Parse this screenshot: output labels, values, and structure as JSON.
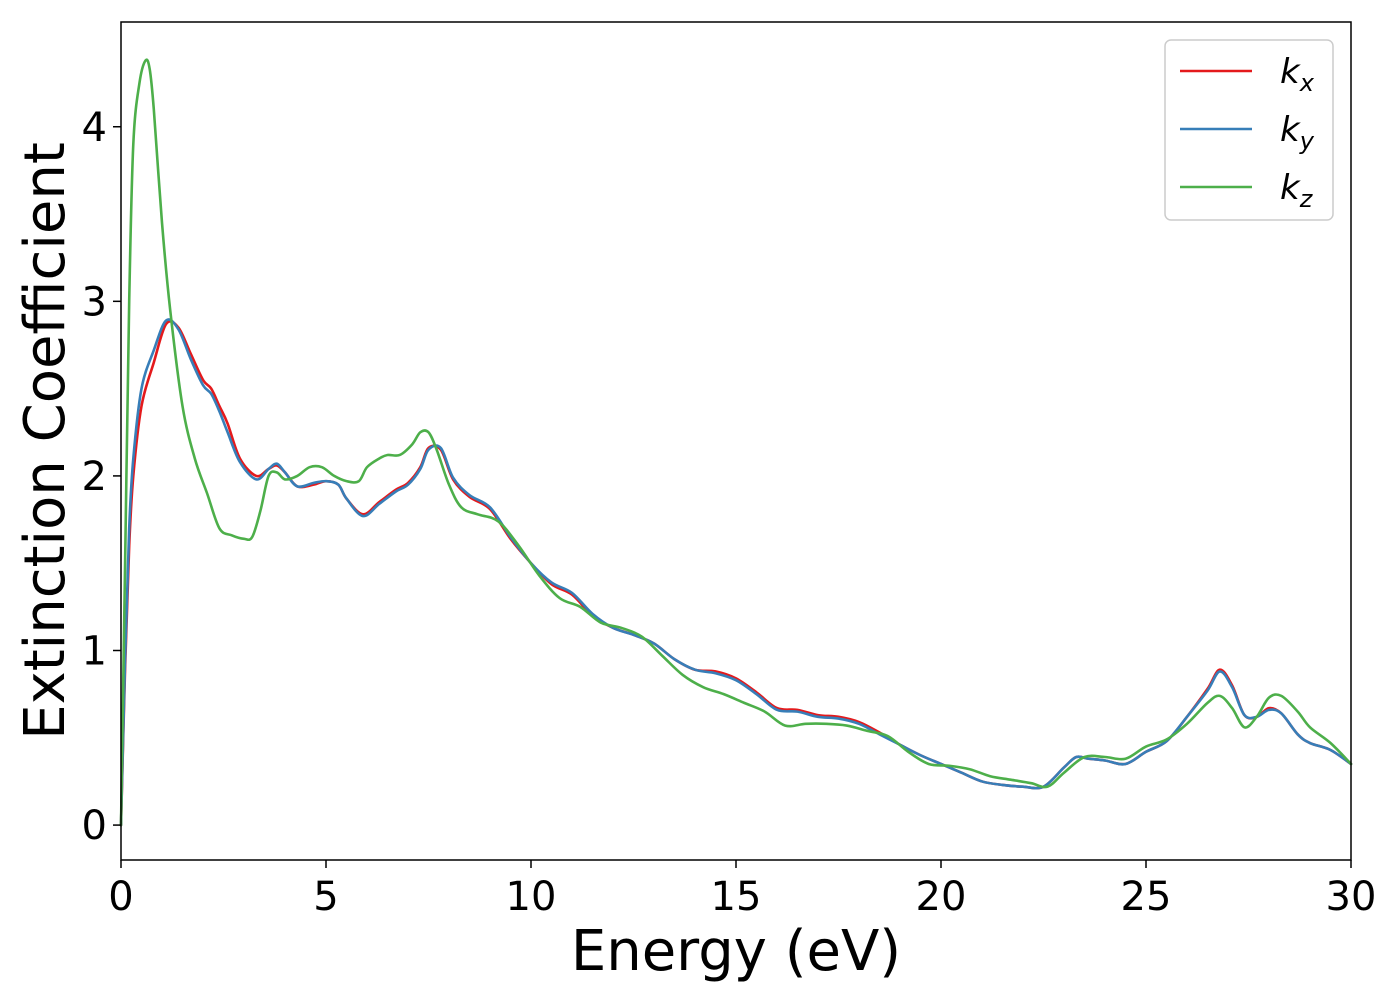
{
  "chart_data": {
    "type": "line",
    "xlabel": "Energy (eV)",
    "ylabel": "Extinction Coefficient",
    "xlim": [
      0,
      30
    ],
    "ylim": [
      -0.2,
      4.6
    ],
    "xticks": [
      0,
      5,
      10,
      15,
      20,
      25,
      30
    ],
    "xtick_labels": [
      "0",
      "5",
      "10",
      "15",
      "20",
      "25",
      "30"
    ],
    "yticks": [
      0,
      1,
      2,
      3,
      4
    ],
    "ytick_labels": [
      "0",
      "1",
      "2",
      "3",
      "4"
    ],
    "grid": false,
    "legend_position": "top-right",
    "series": [
      {
        "name": "k_x",
        "label_main": "k",
        "label_sub": "x",
        "color": "#e41a1c",
        "x": [
          0,
          0.1,
          0.2,
          0.3,
          0.5,
          0.8,
          1.1,
          1.4,
          1.7,
          2.0,
          2.2,
          2.4,
          2.6,
          2.9,
          3.3,
          3.6,
          3.8,
          4.0,
          4.3,
          4.7,
          5.0,
          5.3,
          5.5,
          5.9,
          6.3,
          6.7,
          7.0,
          7.3,
          7.5,
          7.8,
          8.1,
          8.5,
          9.0,
          9.5,
          10.0,
          10.5,
          11.0,
          11.5,
          12.0,
          12.5,
          13.0,
          13.5,
          14.0,
          14.5,
          15.0,
          15.5,
          16.0,
          16.5,
          17.0,
          17.5,
          18.0,
          18.5,
          19.0,
          19.5,
          20.0,
          20.5,
          21.0,
          21.5,
          22.0,
          22.5,
          23.0,
          23.3,
          23.6,
          24.0,
          24.5,
          25.0,
          25.5,
          26.0,
          26.5,
          26.8,
          27.1,
          27.4,
          27.7,
          28.0,
          28.3,
          28.7,
          29.0,
          29.5,
          30.0
        ],
        "y": [
          0.0,
          0.9,
          1.6,
          2.0,
          2.4,
          2.65,
          2.87,
          2.85,
          2.7,
          2.55,
          2.5,
          2.4,
          2.3,
          2.1,
          2.0,
          2.04,
          2.06,
          2.02,
          1.94,
          1.95,
          1.97,
          1.95,
          1.87,
          1.78,
          1.85,
          1.92,
          1.96,
          2.05,
          2.16,
          2.15,
          1.98,
          1.88,
          1.81,
          1.64,
          1.5,
          1.38,
          1.32,
          1.2,
          1.13,
          1.09,
          1.04,
          0.95,
          0.89,
          0.88,
          0.84,
          0.76,
          0.67,
          0.66,
          0.63,
          0.62,
          0.59,
          0.53,
          0.46,
          0.4,
          0.35,
          0.3,
          0.25,
          0.23,
          0.22,
          0.22,
          0.33,
          0.39,
          0.38,
          0.37,
          0.35,
          0.42,
          0.48,
          0.62,
          0.78,
          0.89,
          0.8,
          0.63,
          0.62,
          0.67,
          0.64,
          0.52,
          0.47,
          0.43,
          0.35
        ]
      },
      {
        "name": "k_y",
        "label_main": "k",
        "label_sub": "y",
        "color": "#377eb8",
        "x": [
          0,
          0.1,
          0.2,
          0.3,
          0.5,
          0.8,
          1.1,
          1.4,
          1.7,
          2.0,
          2.2,
          2.4,
          2.6,
          2.9,
          3.3,
          3.6,
          3.8,
          4.0,
          4.3,
          4.7,
          5.0,
          5.3,
          5.5,
          5.9,
          6.3,
          6.7,
          7.0,
          7.3,
          7.5,
          7.8,
          8.1,
          8.5,
          9.0,
          9.5,
          10.0,
          10.5,
          11.0,
          11.5,
          12.0,
          12.5,
          13.0,
          13.5,
          14.0,
          14.5,
          15.0,
          15.5,
          16.0,
          16.5,
          17.0,
          17.5,
          18.0,
          18.5,
          19.0,
          19.5,
          20.0,
          20.5,
          21.0,
          21.5,
          22.0,
          22.5,
          23.0,
          23.3,
          23.6,
          24.0,
          24.5,
          25.0,
          25.5,
          26.0,
          26.5,
          26.8,
          27.1,
          27.4,
          27.7,
          28.0,
          28.3,
          28.7,
          29.0,
          29.5,
          30.0
        ],
        "y": [
          0.0,
          0.95,
          1.7,
          2.1,
          2.5,
          2.72,
          2.89,
          2.84,
          2.67,
          2.52,
          2.47,
          2.37,
          2.25,
          2.08,
          1.98,
          2.04,
          2.07,
          2.02,
          1.94,
          1.96,
          1.97,
          1.95,
          1.87,
          1.77,
          1.84,
          1.91,
          1.95,
          2.04,
          2.15,
          2.16,
          1.99,
          1.89,
          1.82,
          1.65,
          1.5,
          1.39,
          1.33,
          1.21,
          1.13,
          1.09,
          1.04,
          0.95,
          0.89,
          0.87,
          0.83,
          0.75,
          0.66,
          0.65,
          0.62,
          0.61,
          0.58,
          0.52,
          0.46,
          0.4,
          0.35,
          0.3,
          0.25,
          0.23,
          0.22,
          0.22,
          0.33,
          0.39,
          0.38,
          0.37,
          0.35,
          0.42,
          0.48,
          0.62,
          0.77,
          0.88,
          0.79,
          0.63,
          0.62,
          0.66,
          0.64,
          0.52,
          0.47,
          0.43,
          0.35
        ]
      },
      {
        "name": "k_z",
        "label_main": "k",
        "label_sub": "z",
        "color": "#4daf4a",
        "x": [
          0,
          0.1,
          0.2,
          0.3,
          0.45,
          0.6,
          0.7,
          0.8,
          1.0,
          1.2,
          1.5,
          1.8,
          2.1,
          2.4,
          2.7,
          3.0,
          3.2,
          3.4,
          3.6,
          3.8,
          4.0,
          4.3,
          4.6,
          4.9,
          5.2,
          5.5,
          5.8,
          6.0,
          6.3,
          6.5,
          6.8,
          7.1,
          7.3,
          7.5,
          7.7,
          8.0,
          8.3,
          8.7,
          9.2,
          9.7,
          10.2,
          10.7,
          11.2,
          11.7,
          12.2,
          12.7,
          13.2,
          13.7,
          14.2,
          14.7,
          15.2,
          15.7,
          16.2,
          16.7,
          17.2,
          17.7,
          18.2,
          18.7,
          19.2,
          19.7,
          20.2,
          20.7,
          21.2,
          21.7,
          22.2,
          22.6,
          23.0,
          23.5,
          24.0,
          24.5,
          25.0,
          25.5,
          26.0,
          26.5,
          26.8,
          27.1,
          27.4,
          27.7,
          28.0,
          28.3,
          28.7,
          29.0,
          29.5,
          30.0
        ],
        "y": [
          0.0,
          1.5,
          3.0,
          3.9,
          4.25,
          4.38,
          4.33,
          4.1,
          3.45,
          2.95,
          2.4,
          2.1,
          1.9,
          1.7,
          1.66,
          1.64,
          1.65,
          1.8,
          2.0,
          2.02,
          1.98,
          2.0,
          2.05,
          2.05,
          2.0,
          1.97,
          1.97,
          2.05,
          2.1,
          2.12,
          2.12,
          2.18,
          2.25,
          2.25,
          2.15,
          1.95,
          1.82,
          1.78,
          1.74,
          1.6,
          1.43,
          1.3,
          1.25,
          1.16,
          1.13,
          1.08,
          0.97,
          0.86,
          0.79,
          0.75,
          0.7,
          0.65,
          0.57,
          0.58,
          0.58,
          0.57,
          0.54,
          0.51,
          0.42,
          0.35,
          0.34,
          0.32,
          0.28,
          0.26,
          0.24,
          0.22,
          0.3,
          0.39,
          0.39,
          0.38,
          0.45,
          0.49,
          0.58,
          0.7,
          0.74,
          0.67,
          0.56,
          0.62,
          0.73,
          0.74,
          0.65,
          0.56,
          0.47,
          0.35
        ]
      }
    ]
  }
}
